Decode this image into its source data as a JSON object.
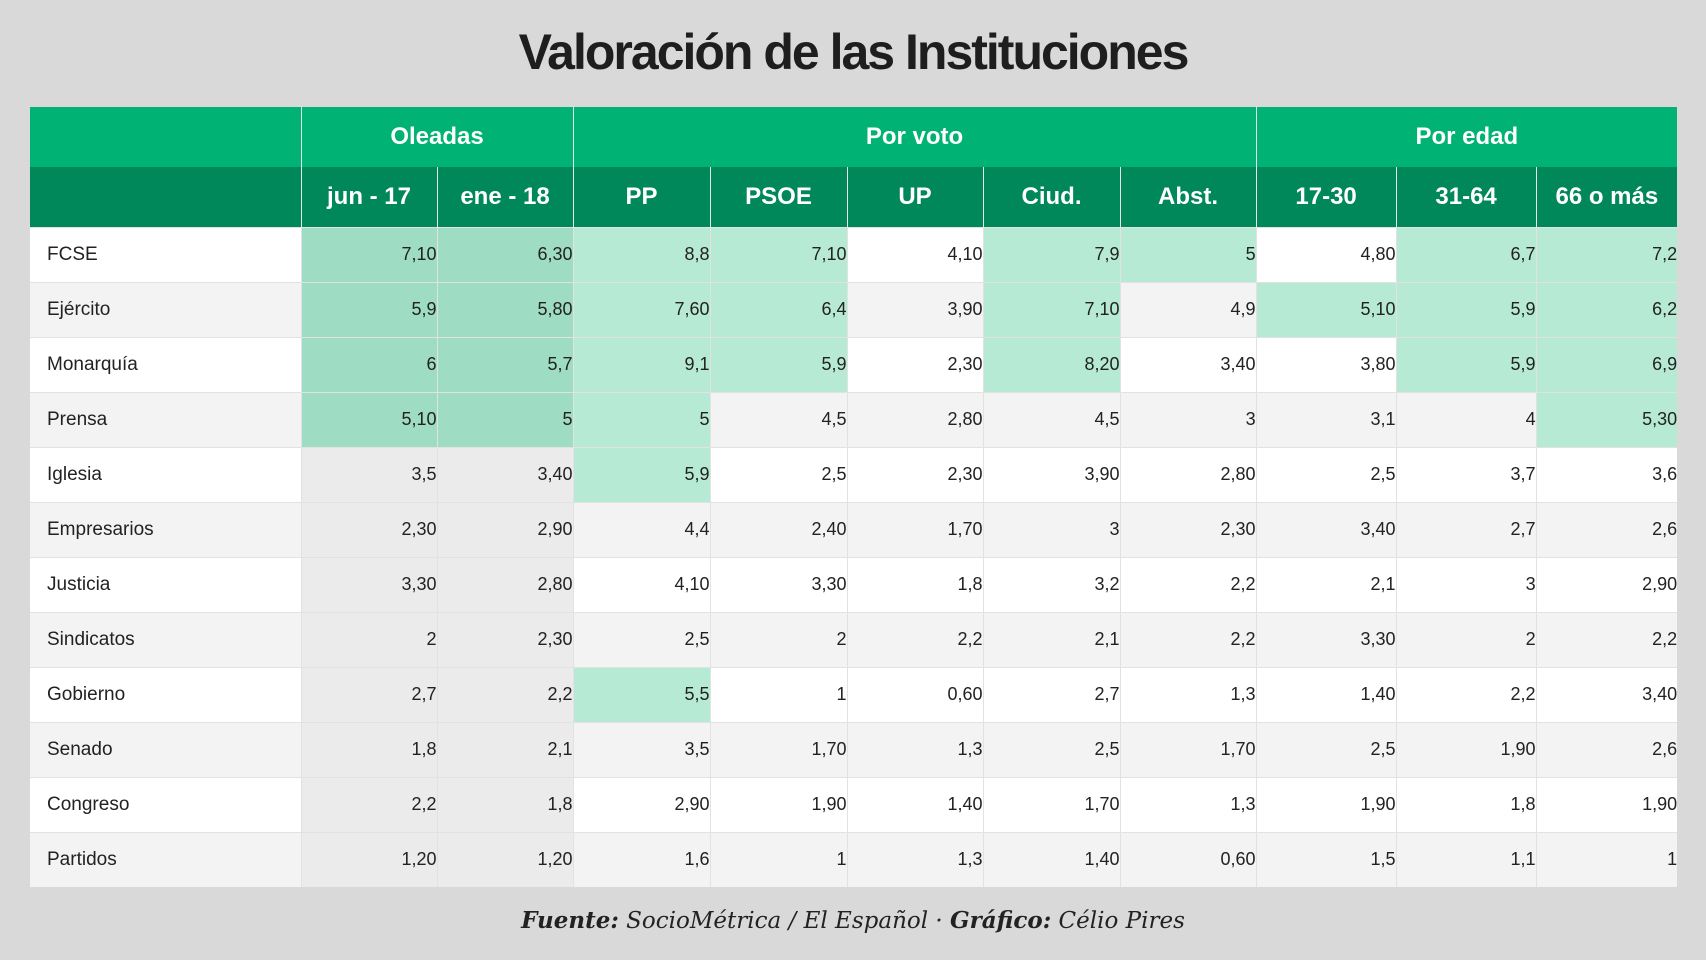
{
  "title": "Valoración de las Instituciones",
  "footer": {
    "source_label": "Fuente:",
    "source_text": " SocioMétrica / El Español · ",
    "chart_label": "Gráfico:",
    "chart_text": " Célio Pires"
  },
  "colors": {
    "header_group": "#00b374",
    "header_sub": "#00875a",
    "highlight": "#b7ead5",
    "highlight_wave": "#9fdcc4"
  },
  "chart_data": {
    "type": "table",
    "title": "Valoración de las Instituciones",
    "groups": [
      {
        "label": "",
        "span": 1
      },
      {
        "label": "Oleadas",
        "span": 2
      },
      {
        "label": "Por voto",
        "span": 5
      },
      {
        "label": "Por edad",
        "span": 3
      }
    ],
    "columns": [
      "jun - 17",
      "ene - 18",
      "PP",
      "PSOE",
      "UP",
      "Ciud.",
      "Abst.",
      "17-30",
      "31-64",
      "66 o más"
    ],
    "rows": [
      {
        "label": "FCSE",
        "values": [
          "7,10",
          "6,30",
          "8,8",
          "7,10",
          "4,10",
          "7,9",
          "5",
          "4,80",
          "6,7",
          "7,2"
        ],
        "highlight": [
          1,
          1,
          1,
          1,
          0,
          1,
          1,
          0,
          1,
          1
        ]
      },
      {
        "label": "Ejército",
        "values": [
          "5,9",
          "5,80",
          "7,60",
          "6,4",
          "3,90",
          "7,10",
          "4,9",
          "5,10",
          "5,9",
          "6,2"
        ],
        "highlight": [
          1,
          1,
          1,
          1,
          0,
          1,
          0,
          1,
          1,
          1
        ]
      },
      {
        "label": "Monarquía",
        "values": [
          "6",
          "5,7",
          "9,1",
          "5,9",
          "2,30",
          "8,20",
          "3,40",
          "3,80",
          "5,9",
          "6,9"
        ],
        "highlight": [
          1,
          1,
          1,
          1,
          0,
          1,
          0,
          0,
          1,
          1
        ]
      },
      {
        "label": "Prensa",
        "values": [
          "5,10",
          "5",
          "5",
          "4,5",
          "2,80",
          "4,5",
          "3",
          "3,1",
          "4",
          "5,30"
        ],
        "highlight": [
          1,
          1,
          1,
          0,
          0,
          0,
          0,
          0,
          0,
          1
        ]
      },
      {
        "label": "Iglesia",
        "values": [
          "3,5",
          "3,40",
          "5,9",
          "2,5",
          "2,30",
          "3,90",
          "2,80",
          "2,5",
          "3,7",
          "3,6"
        ],
        "highlight": [
          0,
          0,
          1,
          0,
          0,
          0,
          0,
          0,
          0,
          0
        ]
      },
      {
        "label": "Empresarios",
        "values": [
          "2,30",
          "2,90",
          "4,4",
          "2,40",
          "1,70",
          "3",
          "2,30",
          "3,40",
          "2,7",
          "2,6"
        ],
        "highlight": [
          0,
          0,
          0,
          0,
          0,
          0,
          0,
          0,
          0,
          0
        ]
      },
      {
        "label": "Justicia",
        "values": [
          "3,30",
          "2,80",
          "4,10",
          "3,30",
          "1,8",
          "3,2",
          "2,2",
          "2,1",
          "3",
          "2,90"
        ],
        "highlight": [
          0,
          0,
          0,
          0,
          0,
          0,
          0,
          0,
          0,
          0
        ]
      },
      {
        "label": "Sindicatos",
        "values": [
          "2",
          "2,30",
          "2,5",
          "2",
          "2,2",
          "2,1",
          "2,2",
          "3,30",
          "2",
          "2,2"
        ],
        "highlight": [
          0,
          0,
          0,
          0,
          0,
          0,
          0,
          0,
          0,
          0
        ]
      },
      {
        "label": "Gobierno",
        "values": [
          "2,7",
          "2,2",
          "5,5",
          "1",
          "0,60",
          "2,7",
          "1,3",
          "1,40",
          "2,2",
          "3,40"
        ],
        "highlight": [
          0,
          0,
          1,
          0,
          0,
          0,
          0,
          0,
          0,
          0
        ]
      },
      {
        "label": "Senado",
        "values": [
          "1,8",
          "2,1",
          "3,5",
          "1,70",
          "1,3",
          "2,5",
          "1,70",
          "2,5",
          "1,90",
          "2,6"
        ],
        "highlight": [
          0,
          0,
          0,
          0,
          0,
          0,
          0,
          0,
          0,
          0
        ]
      },
      {
        "label": "Congreso",
        "values": [
          "2,2",
          "1,8",
          "2,90",
          "1,90",
          "1,40",
          "1,70",
          "1,3",
          "1,90",
          "1,8",
          "1,90"
        ],
        "highlight": [
          0,
          0,
          0,
          0,
          0,
          0,
          0,
          0,
          0,
          0
        ]
      },
      {
        "label": "Partidos",
        "values": [
          "1,20",
          "1,20",
          "1,6",
          "1",
          "1,3",
          "1,40",
          "0,60",
          "1,5",
          "1,1",
          "1"
        ],
        "highlight": [
          0,
          0,
          0,
          0,
          0,
          0,
          0,
          0,
          0,
          0
        ]
      }
    ]
  }
}
